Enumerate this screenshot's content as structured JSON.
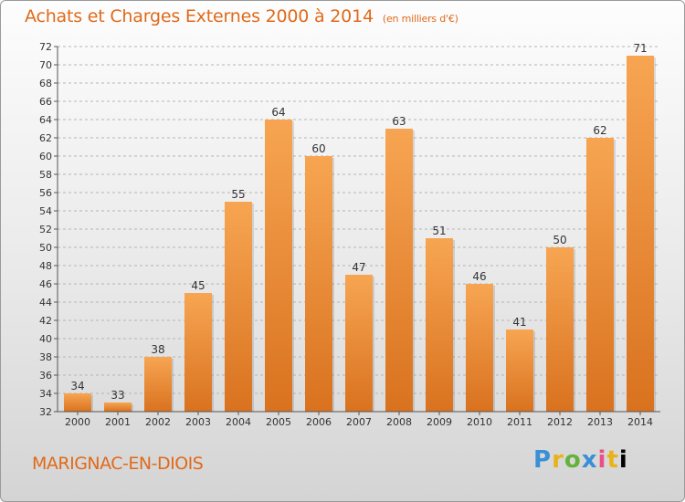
{
  "header": {
    "title": "Achats et Charges Externes 2000 à 2014",
    "unit": "(en milliers d'€)"
  },
  "footer": {
    "commune": "MARIGNAC-EN-DIOIS",
    "logo_letters": [
      "P",
      "r",
      "o",
      "x",
      "i",
      "t",
      "i"
    ]
  },
  "colors": {
    "bar_top": "#f7a552",
    "bar_bottom": "#d9721f",
    "title": "#e06a1a",
    "grid": "#b5b5b5"
  },
  "chart_data": {
    "type": "bar",
    "title": "Achats et Charges Externes 2000 à 2014",
    "subtitle": "(en milliers d'€)",
    "categories": [
      "2000",
      "2001",
      "2002",
      "2003",
      "2004",
      "2005",
      "2006",
      "2007",
      "2008",
      "2009",
      "2010",
      "2011",
      "2012",
      "2013",
      "2014"
    ],
    "values": [
      34,
      33,
      38,
      45,
      55,
      64,
      60,
      47,
      63,
      51,
      46,
      41,
      50,
      62,
      71
    ],
    "ylim": [
      32,
      72
    ],
    "ytick_step": 2,
    "grid": true,
    "legend": "none"
  }
}
